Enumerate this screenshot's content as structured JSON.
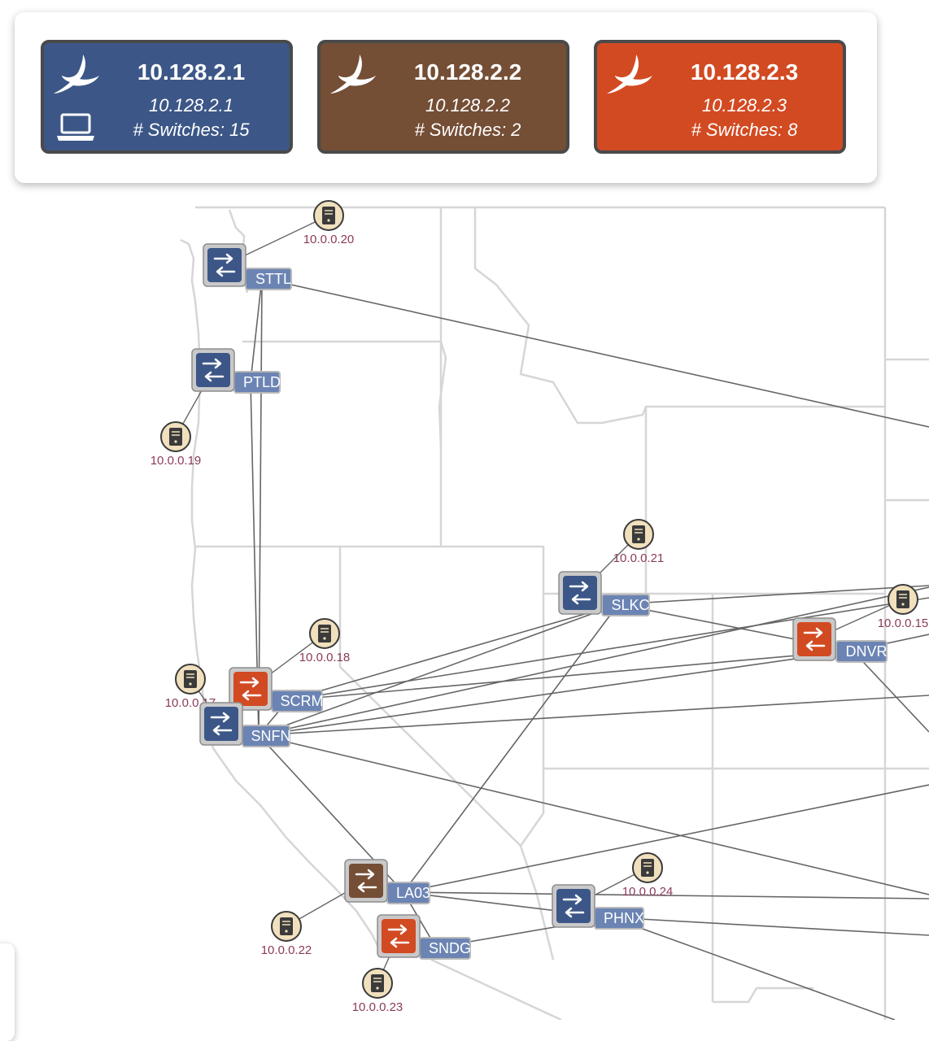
{
  "controllers": [
    {
      "title": "10.128.2.1",
      "subtitle": "10.128.2.1",
      "switches": "# Switches: 15",
      "color": "#3c5787",
      "icon": "bird-icon",
      "active_icon": "laptop-icon"
    },
    {
      "title": "10.128.2.2",
      "subtitle": "10.128.2.2",
      "switches": "# Switches: 2",
      "color": "#744e35",
      "icon": "bird-icon"
    },
    {
      "title": "10.128.2.3",
      "subtitle": "10.128.2.3",
      "switches": "# Switches: 8",
      "color": "#d24a22",
      "icon": "bird-icon"
    }
  ],
  "switches": [
    {
      "id": "STTL",
      "label": "STTL",
      "controller": 0
    },
    {
      "id": "PTLD",
      "label": "PTLD",
      "controller": 0
    },
    {
      "id": "SCRM",
      "label": "SCRM",
      "controller": 2
    },
    {
      "id": "SNFN",
      "label": "SNFN",
      "controller": 0
    },
    {
      "id": "SLKC",
      "label": "SLKC",
      "controller": 0
    },
    {
      "id": "DNVR",
      "label": "DNVR",
      "controller": 2
    },
    {
      "id": "LA03",
      "label": "LA03",
      "controller": 1
    },
    {
      "id": "SNDG",
      "label": "SNDG",
      "controller": 2
    },
    {
      "id": "PHNX",
      "label": "PHNX",
      "controller": 0
    }
  ],
  "hosts": [
    {
      "id": "h20",
      "label": "10.0.0.20",
      "switch": "STTL"
    },
    {
      "id": "h19",
      "label": "10.0.0.19",
      "switch": "PTLD"
    },
    {
      "id": "h21",
      "label": "10.0.0.21",
      "switch": "SLKC"
    },
    {
      "id": "h15",
      "label": "10.0.0.15",
      "switch": "DNVR"
    },
    {
      "id": "h18",
      "label": "10.0.0.18",
      "switch": "SCRM"
    },
    {
      "id": "h17",
      "label": "10.0.0.17",
      "switch": "SNFN"
    },
    {
      "id": "h24",
      "label": "10.0.0.24",
      "switch": "PHNX"
    },
    {
      "id": "h22",
      "label": "10.0.0.22",
      "switch": "LA03"
    },
    {
      "id": "h23",
      "label": "10.0.0.23",
      "switch": "SNDG"
    }
  ],
  "links": [
    [
      "STTL",
      "PTLD"
    ],
    [
      "STTL",
      "SNFN"
    ],
    [
      "PTLD",
      "SNFN"
    ],
    [
      "SCRM",
      "SNFN"
    ],
    [
      "SNFN",
      "SLKC"
    ],
    [
      "SCRM",
      "SLKC"
    ],
    [
      "SNFN",
      "DNVR"
    ],
    [
      "SCRM",
      "DNVR"
    ],
    [
      "SLKC",
      "DNVR"
    ],
    [
      "SNFN",
      "LA03"
    ],
    [
      "SLKC",
      "LA03"
    ],
    [
      "LA03",
      "SNDG"
    ],
    [
      "LA03",
      "PHNX"
    ],
    [
      "SNDG",
      "PHNX"
    ]
  ],
  "colors": {
    "switch_label_bg": "#6b84b3",
    "host_fill": "#f1e0bd",
    "host_label": "#8b3a5a",
    "link": "#666666",
    "map_border": "#d6d6d6"
  }
}
